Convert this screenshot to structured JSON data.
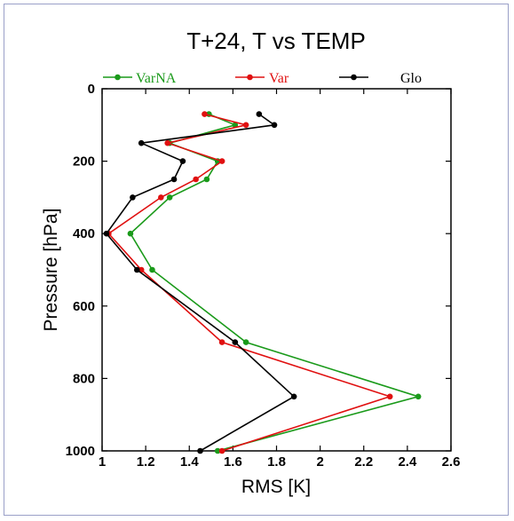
{
  "chart_data": {
    "type": "line",
    "title": "T+24, T vs TEMP",
    "xlabel": "RMS [K]",
    "ylabel": "Pressure [hPa]",
    "xlim": [
      1,
      2.6
    ],
    "ylim": [
      1000,
      0
    ],
    "y_inverted": true,
    "x_ticks": [
      1,
      1.2,
      1.4,
      1.6,
      1.8,
      2,
      2.2,
      2.4,
      2.6
    ],
    "x_tick_labels": [
      "1",
      "1.2",
      "1.4",
      "1.6",
      "1.8",
      "2",
      "2.2",
      "2.4",
      "2.6"
    ],
    "y_ticks": [
      0,
      200,
      400,
      600,
      800,
      1000
    ],
    "y_tick_labels": [
      "0",
      "200",
      "400",
      "600",
      "800",
      "1000"
    ],
    "legend_position": "top",
    "series": [
      {
        "name": "VarNA",
        "color": "#1a9a1a",
        "x": [
          1.49,
          1.61,
          1.31,
          1.53,
          1.48,
          1.31,
          1.13,
          1.23,
          1.66,
          2.45,
          1.53
        ],
        "y": [
          70,
          100,
          150,
          200,
          250,
          300,
          400,
          500,
          700,
          850,
          1000
        ]
      },
      {
        "name": "Var",
        "color": "#e01010",
        "x": [
          1.47,
          1.66,
          1.3,
          1.55,
          1.43,
          1.27,
          1.03,
          1.18,
          1.55,
          2.32,
          1.55
        ],
        "y": [
          70,
          100,
          150,
          200,
          250,
          300,
          400,
          500,
          700,
          850,
          1000
        ]
      },
      {
        "name": "Glo",
        "color": "#000000",
        "x": [
          1.72,
          1.79,
          1.18,
          1.37,
          1.33,
          1.14,
          1.02,
          1.16,
          1.61,
          1.88,
          1.45
        ],
        "y": [
          70,
          100,
          150,
          200,
          250,
          300,
          400,
          500,
          700,
          850,
          1000
        ]
      }
    ]
  }
}
